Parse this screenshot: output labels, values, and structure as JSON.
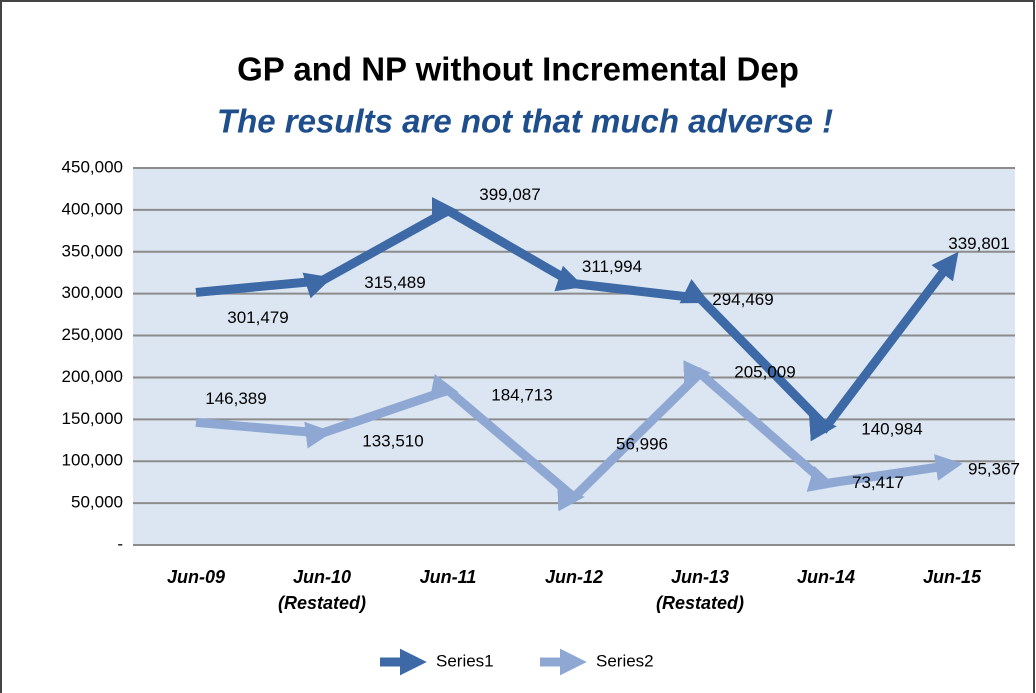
{
  "chart_data": {
    "type": "line",
    "title": "GP and NP without Incremental Dep",
    "subtitle": "The results are not that much adverse !",
    "categories": [
      "Jun-09",
      "Jun-10\n(Restated)",
      "Jun-11",
      "Jun-12",
      "Jun-13\n(Restated)",
      "Jun-14",
      "Jun-15"
    ],
    "series": [
      {
        "name": "Series1",
        "color": "#3d6aa6",
        "values": [
          301479,
          315489,
          399087,
          311994,
          294469,
          140984,
          339801
        ],
        "value_labels": [
          "301,479",
          "315,489",
          "399,087",
          "311,994",
          "294,469",
          "140,984",
          "339,801"
        ]
      },
      {
        "name": "Series2",
        "color": "#8fa8d3",
        "values": [
          146389,
          133510,
          184713,
          56996,
          205009,
          73417,
          95367
        ],
        "value_labels": [
          "146,389",
          "133,510",
          "184,713",
          "56,996",
          "205,009",
          "73,417",
          "95,367"
        ]
      }
    ],
    "ylim": [
      0,
      450000
    ],
    "yticks": [
      {
        "value": 0,
        "label": "-"
      },
      {
        "value": 50000,
        "label": "50,000"
      },
      {
        "value": 100000,
        "label": "100,000"
      },
      {
        "value": 150000,
        "label": "150,000"
      },
      {
        "value": 200000,
        "label": "200,000"
      },
      {
        "value": 250000,
        "label": "250,000"
      },
      {
        "value": 300000,
        "label": "300,000"
      },
      {
        "value": 350000,
        "label": "350,000"
      },
      {
        "value": 400000,
        "label": "400,000"
      },
      {
        "value": 450000,
        "label": "450,000"
      }
    ],
    "grid": true,
    "legend": "bottom"
  }
}
